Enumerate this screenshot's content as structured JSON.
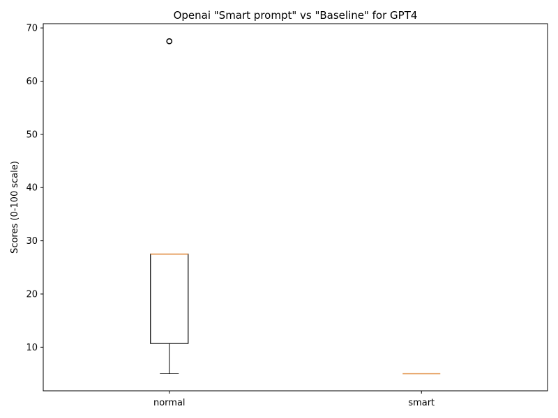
{
  "chart_data": {
    "type": "boxplot",
    "title": "Openai \"Smart prompt\" vs \"Baseline\" for GPT4",
    "ylabel": "Scores (0-100 scale)",
    "xlabel": "",
    "categories": [
      "normal",
      "smart"
    ],
    "ylim": [
      1.8,
      70.8
    ],
    "yticks": [
      10,
      20,
      30,
      40,
      50,
      60,
      70
    ],
    "grid": false,
    "boxes": [
      {
        "category": "normal",
        "whisker_low": 5,
        "q1": 10.7,
        "median": 27.5,
        "q3": 27.5,
        "whisker_high": 27.5,
        "outliers": [
          67.5
        ]
      },
      {
        "category": "smart",
        "whisker_low": 5,
        "q1": 5,
        "median": 5,
        "q3": 5,
        "whisker_high": 5,
        "outliers": []
      }
    ],
    "colors": {
      "box": "#000000",
      "median": "#e08a3c"
    }
  }
}
